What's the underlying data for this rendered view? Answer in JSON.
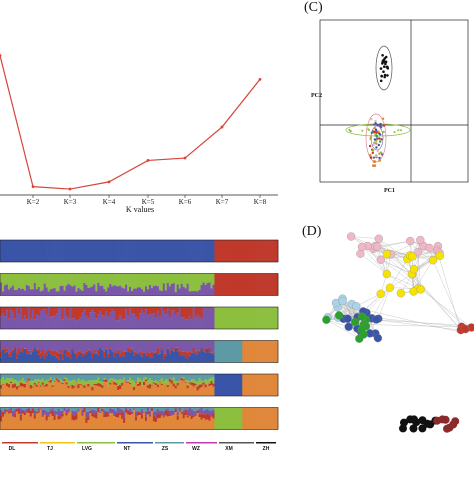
{
  "panel_c": {
    "label": "(C)",
    "xlabel": "PC1",
    "ylabel": "PC2"
  },
  "panel_d": {
    "label": "(D)"
  },
  "colors": {
    "line": "#d9443a",
    "blue": "#3a54a8",
    "red": "#c0392b",
    "purple": "#7a57a8",
    "green": "#8cbf3f",
    "orange": "#e0873a",
    "teal": "#5d9aa6",
    "pink": "#f0b8c6",
    "yellow": "#f7e300",
    "lightblue": "#a9d3e8",
    "darkgreen": "#2aa12a",
    "black": "#111111",
    "brown": "#8b2a2a"
  },
  "chart_data": [
    {
      "type": "line",
      "title": "",
      "xlabel": "K values",
      "ylabel": "",
      "categories": [
        "K=2",
        "K=3",
        "K=4",
        "K=5",
        "K=6",
        "K=7",
        "K=8"
      ],
      "values": [
        0.02,
        0.0,
        0.06,
        0.24,
        0.26,
        0.52,
        0.92
      ],
      "ylim": [
        -0.05,
        1.25
      ],
      "extra_point_left": 1.12,
      "grid": false
    },
    {
      "type": "bar",
      "title": "",
      "subtype": "structure_plot",
      "populations": [
        "DL",
        "TJ",
        "LVG",
        "NT",
        "ZS",
        "WZ",
        "XM",
        "ZH"
      ],
      "rows": [
        "K=2",
        "K=3",
        "K=4",
        "K=5",
        "K=6",
        "K=7"
      ]
    }
  ]
}
